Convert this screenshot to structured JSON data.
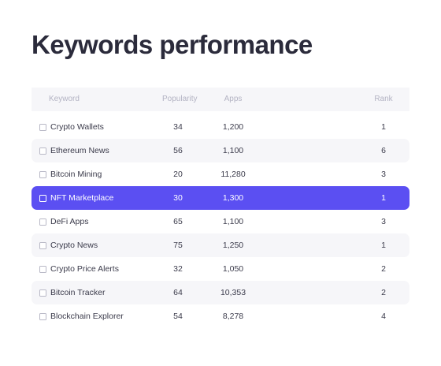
{
  "header": {
    "title": "Keywords performance"
  },
  "table": {
    "columns": [
      "Keyword",
      "Popularity",
      "Apps",
      "Rank"
    ],
    "rows": [
      [
        "Crypto Wallets",
        "34",
        "1,200",
        "1"
      ],
      [
        "Ethereum News",
        "56",
        "1,100",
        "6"
      ],
      [
        "Bitcoin Mining",
        "20",
        "11,280",
        "3"
      ],
      [
        "NFT Marketplace",
        "30",
        "1,300",
        "1"
      ],
      [
        "DeFi Apps",
        "65",
        "1,100",
        "3"
      ],
      [
        "Crypto News",
        "75",
        "1,250",
        "1"
      ],
      [
        "Crypto Price Alerts",
        "32",
        "1,050",
        "2"
      ],
      [
        "Bitcoin Tracker",
        "64",
        "10,353",
        "2"
      ],
      [
        "Blockchain Explorer",
        "54",
        "8,278",
        "4"
      ]
    ],
    "selected_row": 3
  }
}
